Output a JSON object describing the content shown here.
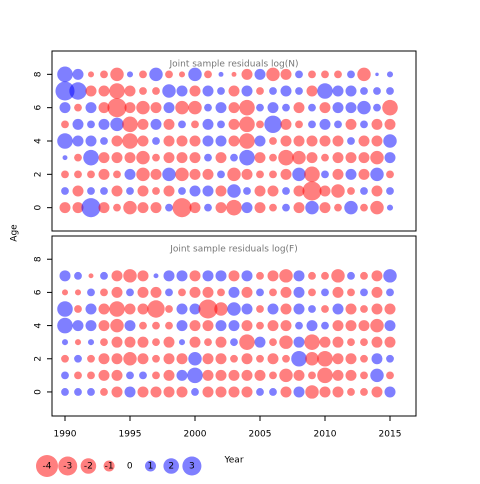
{
  "chart_data": [
    {
      "type": "bubble",
      "title": "Joint sample residuals log(N)",
      "ylabel": "Age",
      "x": [
        1990,
        1991,
        1992,
        1993,
        1994,
        1995,
        1996,
        1997,
        1998,
        1999,
        2000,
        2001,
        2002,
        2003,
        2004,
        2005,
        2006,
        2007,
        2008,
        2009,
        2010,
        2011,
        2012,
        2013,
        2014,
        2015
      ],
      "y": [
        0,
        1,
        2,
        3,
        4,
        5,
        6,
        7,
        8
      ],
      "xlim": [
        1989,
        2017
      ],
      "ylim": [
        -1.4,
        9.4
      ],
      "yticks": [
        0,
        2,
        4,
        6,
        8
      ],
      "colors": {
        "positive": "#0000ff",
        "negative": "#ff0000"
      },
      "values": [
        [
          -1,
          -1,
          3,
          -1,
          -0.5,
          -1.5,
          -1,
          -1,
          0.5,
          -3,
          -1,
          0.5,
          -1,
          -2,
          1,
          -1,
          -0.5,
          0.5,
          -1,
          1.5,
          -1,
          -0.5,
          1.5,
          -0.5,
          -1.5,
          0.3
        ],
        [
          0.5,
          -1,
          0.5,
          0.5,
          -1,
          0.5,
          -1,
          -0.5,
          -1,
          0.5,
          1,
          1,
          -1,
          1.5,
          0.5,
          -1,
          -1,
          0.5,
          -1,
          -3,
          -1,
          -1.5,
          -0.5,
          0.5,
          -1,
          0.5
        ],
        [
          -0.5,
          -0.5,
          -0.5,
          -1,
          -0.5,
          1,
          -1.5,
          -1,
          1.5,
          -1.5,
          -1,
          -1,
          0.5,
          -1.5,
          -1,
          -0.5,
          -0.5,
          -1,
          1.5,
          -2,
          0.5,
          -1,
          1,
          -1,
          1.5,
          -0.5
        ],
        [
          0.2,
          -0.5,
          2,
          -1,
          -1,
          -1,
          -1.5,
          -0.5,
          -1,
          -1,
          -1,
          0.5,
          -1,
          0.5,
          2,
          -1,
          -0.5,
          -2,
          -1.5,
          -1,
          -0.5,
          -1,
          -1,
          -1,
          -1.5,
          1
        ],
        [
          2,
          1,
          1,
          0.5,
          -1,
          -2,
          -1,
          0.5,
          -1,
          -1,
          -1,
          1,
          1,
          -1,
          -2,
          1,
          -0.5,
          -1,
          -1,
          -1,
          -1,
          -1,
          0.5,
          -1,
          -1,
          1.5
        ],
        [
          -0.5,
          1,
          0.5,
          1,
          1.5,
          -2,
          -1,
          1,
          -1,
          0.5,
          -0.5,
          1,
          0.5,
          -1,
          -2,
          -0.5,
          2.5,
          -1,
          -0.5,
          0.5,
          1,
          0.5,
          -1,
          0.5,
          -1,
          -1
        ],
        [
          1,
          -0.5,
          1,
          -1,
          -3,
          -1,
          -1.5,
          -1,
          1,
          -1.5,
          -1.5,
          0.5,
          1,
          -1,
          -2,
          0.5,
          1,
          0.5,
          -1,
          0.5,
          -1,
          1,
          1,
          1.5,
          0.5,
          -2
        ],
        [
          3,
          2.5,
          -1,
          -1,
          -2,
          -1,
          -0.5,
          -0.5,
          1.5,
          1,
          -1,
          1,
          0.5,
          -1,
          1,
          -0.5,
          0.5,
          1,
          0.5,
          -1,
          2,
          1,
          1,
          0.5,
          0.5,
          0.5
        ],
        [
          2,
          1,
          -0.3,
          -0.5,
          -1.5,
          0.3,
          -0.5,
          1.5,
          -0.5,
          -0.3,
          1.5,
          -0.5,
          0.2,
          -0.2,
          -1,
          1,
          -1.5,
          -1,
          0.5,
          -0.5,
          -0.5,
          -0.5,
          0.5,
          -1.5,
          0.1,
          0.3
        ]
      ]
    },
    {
      "type": "bubble",
      "title": "Joint sample residuals log(F)",
      "xlabel": "Year",
      "x": [
        1990,
        1991,
        1992,
        1993,
        1994,
        1995,
        1996,
        1997,
        1998,
        1999,
        2000,
        2001,
        2002,
        2003,
        2004,
        2005,
        2006,
        2007,
        2008,
        2009,
        2010,
        2011,
        2012,
        2013,
        2014,
        2015
      ],
      "y": [
        0,
        1,
        2,
        3,
        4,
        5,
        6,
        7
      ],
      "xlim": [
        1989,
        2017
      ],
      "xticks": [
        1990,
        1995,
        2000,
        2005,
        2010,
        2015
      ],
      "ylim": [
        -1.45,
        9.4
      ],
      "yticks": [
        0,
        2,
        4,
        6,
        8
      ],
      "colors": {
        "positive": "#0000ff",
        "negative": "#ff0000"
      },
      "values": [
        [
          0.5,
          0.5,
          0.5,
          -0.5,
          -1,
          1,
          -1,
          -1,
          -1,
          -1,
          0.5,
          -1,
          -1,
          -1,
          -1,
          0.5,
          0.5,
          -1,
          1,
          -1.5,
          -1,
          -1,
          -0.5,
          -0.5,
          -1,
          1
        ],
        [
          0.5,
          -0.5,
          -0.5,
          -1,
          -1,
          0.5,
          0.5,
          -0.5,
          -1,
          1,
          2,
          -1,
          -1,
          -1,
          -1,
          -1,
          -0.5,
          -1.5,
          -1,
          -0.5,
          -2,
          -1,
          -1,
          -0.5,
          1.5,
          -0.5
        ],
        [
          -0.5,
          0.5,
          -0.5,
          -1,
          -1,
          -1.5,
          -1,
          -0.5,
          -1,
          -1,
          1.5,
          -1,
          -1,
          -0.5,
          -1,
          -0.5,
          -1,
          -0.5,
          2,
          -1.5,
          -2,
          -1,
          -1,
          -0.5,
          1,
          0.5
        ],
        [
          0.3,
          -0.3,
          0.3,
          -0.5,
          -1,
          -1,
          -1,
          -0.5,
          -1,
          0.3,
          -1,
          -0.5,
          -1,
          0.5,
          -2,
          1,
          -0.5,
          -1.5,
          1,
          -2,
          -1,
          -1,
          -0.5,
          -0.5,
          -1,
          -1
        ],
        [
          2,
          1,
          1,
          -1,
          -1.5,
          1,
          -0.5,
          -0.5,
          -0.5,
          1,
          -1,
          -1,
          1,
          1,
          -1,
          -0.5,
          -1,
          -1,
          0.5,
          1,
          0.5,
          -1,
          -1,
          -1,
          -1.5,
          1
        ],
        [
          2,
          -0.5,
          1,
          -1,
          -2,
          -1,
          -1,
          -2.5,
          -0.5,
          1,
          1,
          -3,
          -1.5,
          1.5,
          1,
          -0.5,
          1,
          -1,
          1,
          0.5,
          -0.5,
          1,
          -1,
          -0.5,
          -1,
          -1
        ],
        [
          -0.3,
          -0.3,
          0.5,
          -0.5,
          -1,
          0.5,
          -1,
          -1,
          0.5,
          -0.5,
          -1,
          -1,
          -0.5,
          1,
          -1,
          0.5,
          -0.5,
          -1,
          1,
          -0.5,
          0.5,
          -1,
          -0.5,
          0.5,
          -1,
          0.5
        ],
        [
          1,
          0.5,
          -0.2,
          0.5,
          -1,
          -1.5,
          -1,
          0.2,
          1,
          1,
          -1,
          1,
          1,
          -1,
          1,
          -0.5,
          -1,
          -1.5,
          1,
          -0.5,
          -0.5,
          -1.5,
          0.5,
          -0.5,
          -1,
          1.5
        ]
      ],
      "legend": [
        -4,
        -3,
        -2,
        -1,
        0,
        1,
        2,
        3
      ]
    }
  ]
}
